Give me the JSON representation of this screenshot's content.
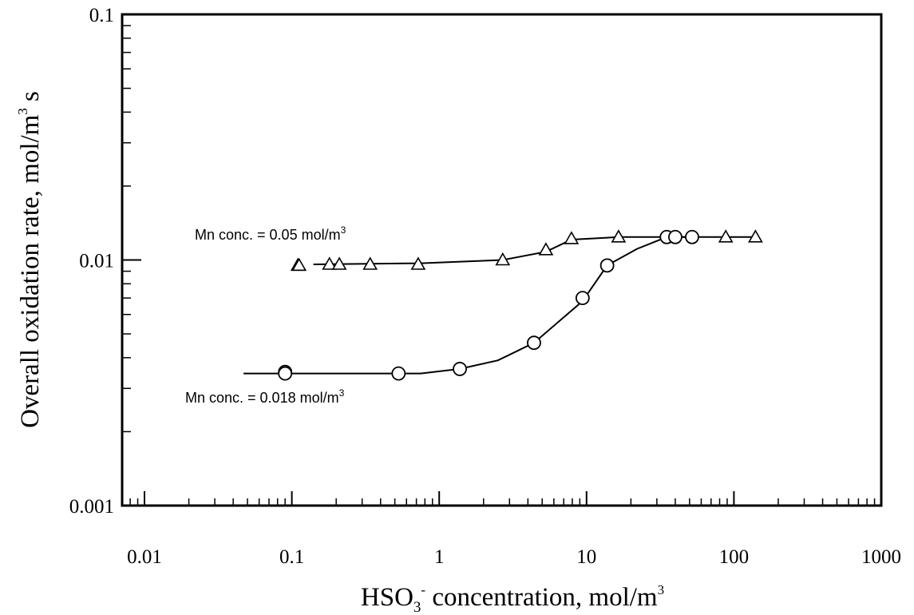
{
  "chart_data": {
    "type": "scatter",
    "xscale": "log",
    "yscale": "log",
    "xlim": [
      0.01,
      1000
    ],
    "ylim": [
      0.001,
      0.1
    ],
    "grid": false,
    "xlabel": {
      "main": "HSO",
      "sub": "3",
      "sup": "-",
      "rest": " concentration, mol/m",
      "sup2": "3"
    },
    "ylabel": {
      "main": "Overall oxidation rate, mol/m",
      "sup": "3",
      "rest": " s"
    },
    "x_ticks": [
      "0.01",
      "0.1",
      "1",
      "10",
      "100",
      "1000"
    ],
    "y_ticks": [
      "0.001",
      "0.01",
      "0.1"
    ],
    "annotations": [
      {
        "id": "ann-upper",
        "text": "Mn conc. = 0.05 mol/m",
        "sup": "3"
      },
      {
        "id": "ann-lower",
        "text": "Mn conc. = 0.018 mol/m",
        "sup": "3"
      }
    ],
    "series": [
      {
        "marker": "triangle",
        "points": [
          [
            0.11,
            0.0095
          ],
          [
            0.112,
            0.0095
          ],
          [
            0.18,
            0.0096
          ],
          [
            0.21,
            0.0096
          ],
          [
            0.34,
            0.0096
          ],
          [
            0.72,
            0.0096
          ],
          [
            2.7,
            0.01
          ],
          [
            5.3,
            0.011
          ],
          [
            7.9,
            0.0122
          ],
          [
            16.5,
            0.0124
          ],
          [
            88,
            0.0124
          ],
          [
            140,
            0.0124
          ]
        ],
        "curve": [
          [
            0.14,
            0.0096
          ],
          [
            0.75,
            0.0097
          ],
          [
            2.7,
            0.01
          ],
          [
            5.3,
            0.0108
          ],
          [
            7.9,
            0.0121
          ],
          [
            16.5,
            0.0124
          ],
          [
            145,
            0.0124
          ]
        ]
      },
      {
        "marker": "circle",
        "points": [
          [
            0.09,
            0.0035
          ],
          [
            0.09,
            0.00345
          ],
          [
            0.53,
            0.00345
          ],
          [
            1.38,
            0.0036
          ],
          [
            4.4,
            0.0046
          ],
          [
            9.4,
            0.007
          ],
          [
            13.8,
            0.0095
          ],
          [
            35,
            0.0124
          ],
          [
            40,
            0.0124
          ],
          [
            52,
            0.0124
          ]
        ],
        "curve": [
          [
            0.047,
            0.00345
          ],
          [
            0.75,
            0.00345
          ],
          [
            1.38,
            0.0036
          ],
          [
            2.5,
            0.0039
          ],
          [
            4.4,
            0.0046
          ],
          [
            9.4,
            0.0068
          ],
          [
            13.8,
            0.0095
          ],
          [
            22,
            0.0111
          ],
          [
            35,
            0.0124
          ],
          [
            52,
            0.0124
          ]
        ]
      }
    ]
  }
}
